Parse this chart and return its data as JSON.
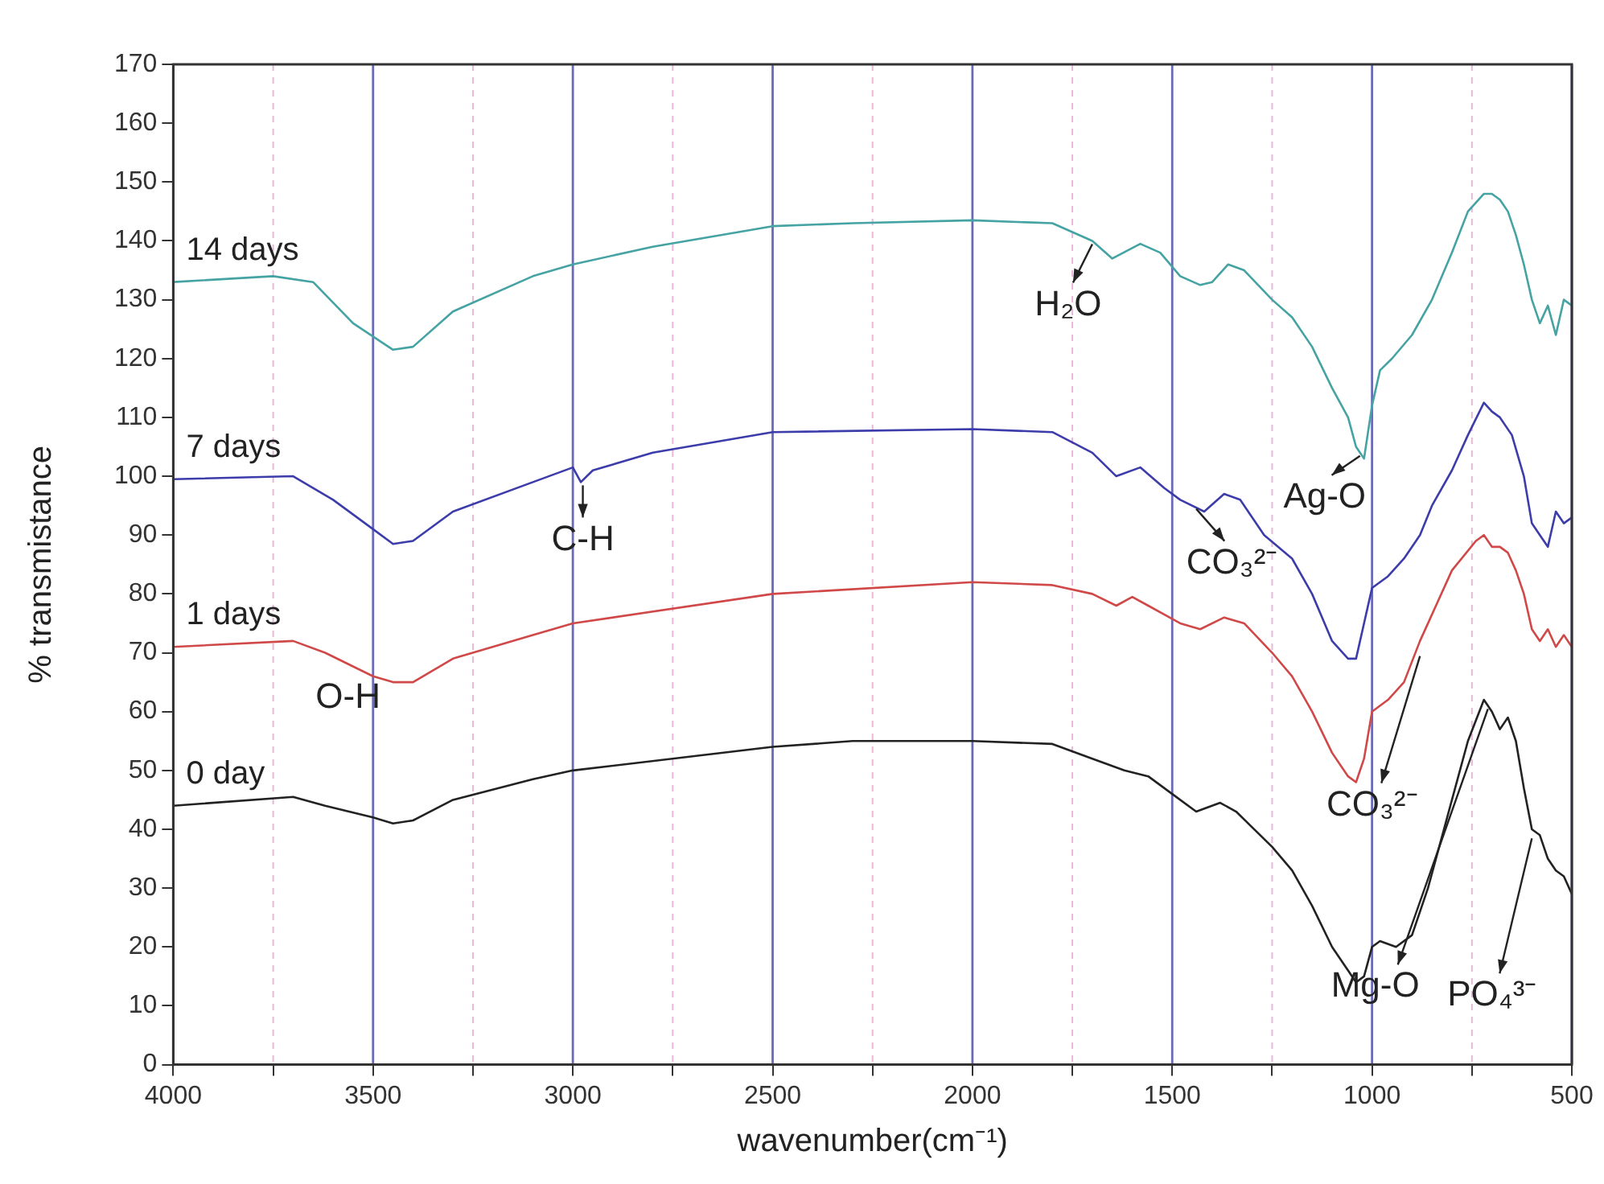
{
  "chart_data": {
    "type": "line",
    "xlabel": "wavenumber(cm⁻¹)",
    "ylabel": "% transmistance",
    "xlim": [
      4000,
      500
    ],
    "ylim": [
      0,
      170
    ],
    "xticks": [
      4000,
      {
        "value": 3750,
        "label": null
      },
      3500,
      {
        "value": 3250,
        "label": null
      },
      3000,
      {
        "value": 2750,
        "label": null
      },
      2500,
      {
        "value": 2250,
        "label": null
      },
      2000,
      {
        "value": 1750,
        "label": null
      },
      1500,
      {
        "value": 1250,
        "label": null
      },
      1000,
      {
        "value": 750,
        "label": null
      },
      500
    ],
    "yticks": [
      0,
      10,
      20,
      30,
      40,
      50,
      60,
      70,
      80,
      90,
      100,
      110,
      120,
      130,
      140,
      150,
      160,
      170
    ],
    "grid": "x",
    "legend": false,
    "marker": "none",
    "line_style": "solid",
    "series": [
      {
        "name": "14 days",
        "color": "#45a3a3",
        "x": [
          4000,
          3750,
          3650,
          3550,
          3450,
          3400,
          3300,
          3100,
          3000,
          2800,
          2500,
          2300,
          2000,
          1800,
          1700,
          1650,
          1580,
          1530,
          1480,
          1430,
          1400,
          1360,
          1320,
          1250,
          1200,
          1150,
          1100,
          1060,
          1040,
          1020,
          1000,
          980,
          950,
          900,
          850,
          800,
          760,
          720,
          700,
          680,
          660,
          640,
          620,
          600,
          580,
          560,
          540,
          520,
          500
        ],
        "values": [
          133,
          134,
          133,
          126,
          121.5,
          122,
          128,
          134,
          136,
          139,
          142.5,
          143,
          143.5,
          143,
          140,
          137,
          139.5,
          138,
          134,
          132.5,
          133,
          136,
          135,
          130,
          127,
          122,
          115,
          110,
          105,
          103,
          112,
          118,
          120,
          124,
          130,
          138,
          145,
          148,
          148,
          147,
          145,
          141,
          136,
          130,
          126,
          129,
          124,
          130,
          129
        ]
      },
      {
        "name": "7 days",
        "color": "#3c3caa",
        "x": [
          4000,
          3700,
          3600,
          3500,
          3450,
          3400,
          3300,
          3100,
          3000,
          2980,
          2950,
          2800,
          2500,
          2000,
          1800,
          1700,
          1640,
          1580,
          1520,
          1480,
          1420,
          1370,
          1330,
          1270,
          1200,
          1150,
          1100,
          1060,
          1040,
          1020,
          1000,
          960,
          920,
          880,
          850,
          800,
          760,
          720,
          700,
          680,
          650,
          620,
          600,
          580,
          560,
          540,
          520,
          500
        ],
        "values": [
          99.5,
          100,
          96,
          91,
          88.5,
          89,
          94,
          99,
          101.5,
          99,
          101,
          104,
          107.5,
          108,
          107.5,
          104,
          100,
          101.5,
          98,
          96,
          94,
          97,
          96,
          90,
          86,
          80,
          72,
          69,
          69,
          75,
          81,
          83,
          86,
          90,
          95,
          101,
          107,
          112.5,
          111,
          110,
          107,
          100,
          92,
          90,
          88,
          94,
          92,
          93
        ]
      },
      {
        "name": "1 days",
        "color": "#d04848",
        "x": [
          4000,
          3700,
          3620,
          3500,
          3450,
          3400,
          3300,
          3100,
          3000,
          2500,
          2000,
          1800,
          1700,
          1640,
          1600,
          1560,
          1480,
          1430,
          1370,
          1320,
          1250,
          1200,
          1150,
          1100,
          1060,
          1040,
          1020,
          1000,
          960,
          920,
          880,
          840,
          800,
          740,
          720,
          700,
          680,
          660,
          640,
          620,
          600,
          580,
          560,
          540,
          520,
          500
        ],
        "values": [
          71,
          72,
          70,
          66,
          65,
          65,
          69,
          73,
          75,
          80,
          82,
          81.5,
          80,
          78,
          79.5,
          78,
          75,
          74,
          76,
          75,
          70,
          66,
          60,
          53,
          49,
          48,
          52,
          60,
          62,
          65,
          72,
          78,
          84,
          89,
          90,
          88,
          88,
          87,
          84,
          80,
          74,
          72,
          74,
          71,
          73,
          71
        ]
      },
      {
        "name": "0 day",
        "color": "#222222",
        "x": [
          4000,
          3700,
          3620,
          3500,
          3450,
          3400,
          3300,
          3100,
          3000,
          2500,
          2300,
          2000,
          1800,
          1700,
          1620,
          1560,
          1500,
          1440,
          1380,
          1340,
          1250,
          1200,
          1150,
          1100,
          1060,
          1040,
          1020,
          1000,
          980,
          940,
          900,
          860,
          800,
          760,
          720,
          700,
          680,
          660,
          640,
          620,
          600,
          580,
          560,
          540,
          520,
          500
        ],
        "values": [
          44,
          45.5,
          44,
          42,
          41,
          41.5,
          45,
          48.5,
          50,
          54,
          55,
          55,
          54.5,
          52,
          50,
          49,
          46,
          43,
          44.5,
          43,
          37,
          33,
          27,
          20,
          16,
          14,
          15,
          20,
          21,
          20,
          22,
          30,
          45,
          55,
          62,
          60,
          57,
          59,
          55,
          47,
          40,
          39,
          35,
          33,
          32,
          29
        ]
      }
    ],
    "annotations": [
      {
        "text": "H₂O",
        "x": 1700,
        "y": 140
      },
      {
        "text": "C-H",
        "x": 2975,
        "y": 99
      },
      {
        "text": "O-H",
        "x": 3450,
        "y": 65
      },
      {
        "text": "Ag-O",
        "x": 1030,
        "y": 104
      },
      {
        "text": "CO₃²⁻",
        "x": 1440,
        "y": 95
      },
      {
        "text": "CO₃²⁻",
        "x": 880,
        "y": 70
      },
      {
        "text": "Mg-O",
        "x": 710,
        "y": 61
      },
      {
        "text": "PO₄³⁻",
        "x": 600,
        "y": 39
      }
    ]
  }
}
